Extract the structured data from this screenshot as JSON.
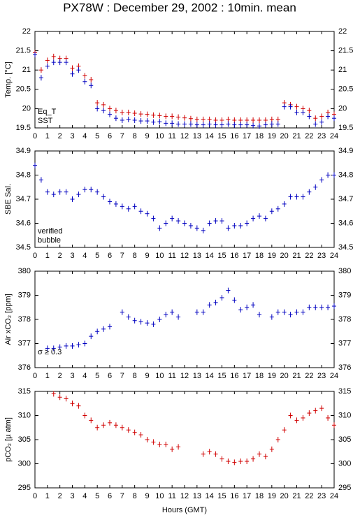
{
  "title": "PX78W : December 29, 2002 : 10min. mean",
  "xlabel": "Hours (GMT)",
  "chart_data": [
    {
      "type": "scatter",
      "ylabel": "Temp. [°C]",
      "legend": "lower left",
      "grid": false,
      "x": [
        0,
        0.5,
        1,
        1.5,
        2,
        2.5,
        3,
        3.5,
        4,
        4.5,
        5,
        5.5,
        6,
        6.5,
        7,
        7.5,
        8,
        8.5,
        9,
        9.5,
        10,
        10.5,
        11,
        11.5,
        12,
        12.5,
        13,
        13.5,
        14,
        14.5,
        15,
        15.5,
        16,
        16.5,
        17,
        17.5,
        18,
        18.5,
        19,
        19.5,
        20,
        20.5,
        21,
        21.5,
        22,
        22.5,
        23,
        23.5,
        24
      ],
      "xlim": [
        0,
        24
      ],
      "xticks": [
        0,
        1,
        2,
        3,
        4,
        5,
        6,
        7,
        8,
        9,
        10,
        11,
        12,
        13,
        14,
        15,
        16,
        17,
        18,
        19,
        20,
        21,
        22,
        23,
        24
      ],
      "ylim": [
        19.5,
        22
      ],
      "yticks": [
        19.5,
        20,
        20.5,
        21,
        21.5,
        22
      ],
      "series": [
        {
          "name": "Eq_T",
          "color": "#d00000",
          "values": [
            21.45,
            21.0,
            21.25,
            21.35,
            21.3,
            21.3,
            21.05,
            21.1,
            20.85,
            20.75,
            20.15,
            20.1,
            20.0,
            19.95,
            19.9,
            19.9,
            19.88,
            19.86,
            19.85,
            19.83,
            19.82,
            19.8,
            19.8,
            19.78,
            19.76,
            19.74,
            19.72,
            19.72,
            19.72,
            19.7,
            19.7,
            19.72,
            19.7,
            19.7,
            19.7,
            19.7,
            19.7,
            19.7,
            19.72,
            19.72,
            20.15,
            20.1,
            20.05,
            20.0,
            19.95,
            19.75,
            19.8,
            19.9,
            19.85
          ]
        },
        {
          "name": "SST",
          "color": "#0000c0",
          "values": [
            21.4,
            20.8,
            21.1,
            21.2,
            21.2,
            21.2,
            20.9,
            21.0,
            20.7,
            20.6,
            20.0,
            19.95,
            19.85,
            19.75,
            19.7,
            19.72,
            19.7,
            19.68,
            19.68,
            19.65,
            19.66,
            19.62,
            19.62,
            19.6,
            19.6,
            19.6,
            19.58,
            19.58,
            19.6,
            19.58,
            19.58,
            19.6,
            19.58,
            19.58,
            19.58,
            19.56,
            19.55,
            19.58,
            19.6,
            19.6,
            20.05,
            20.05,
            19.9,
            19.9,
            19.8,
            19.6,
            19.65,
            19.8,
            19.75
          ]
        }
      ]
    },
    {
      "type": "scatter",
      "ylabel": "SBE Sal.",
      "legend": "lower left",
      "grid": false,
      "x": [
        0,
        0.5,
        1,
        1.5,
        2,
        2.5,
        3,
        3.5,
        4,
        4.5,
        5,
        5.5,
        6,
        6.5,
        7,
        7.5,
        8,
        8.5,
        9,
        9.5,
        10,
        10.5,
        11,
        11.5,
        12,
        12.5,
        13,
        13.5,
        14,
        14.5,
        15,
        15.5,
        16,
        16.5,
        17,
        17.5,
        18,
        18.5,
        19,
        19.5,
        20,
        20.5,
        21,
        21.5,
        22,
        22.5,
        23,
        23.5,
        24
      ],
      "xlim": [
        0,
        24
      ],
      "xticks": [
        0,
        1,
        2,
        3,
        4,
        5,
        6,
        7,
        8,
        9,
        10,
        11,
        12,
        13,
        14,
        15,
        16,
        17,
        18,
        19,
        20,
        21,
        22,
        23,
        24
      ],
      "ylim": [
        34.5,
        34.9
      ],
      "yticks": [
        34.5,
        34.6,
        34.7,
        34.8,
        34.9
      ],
      "series": [
        {
          "name": "verified",
          "color": "#0000c0",
          "values": [
            34.84,
            34.78,
            34.73,
            34.72,
            34.73,
            34.73,
            34.7,
            34.72,
            34.74,
            34.74,
            34.73,
            34.71,
            34.69,
            34.68,
            34.67,
            34.66,
            34.67,
            34.65,
            34.64,
            34.62,
            34.58,
            34.6,
            34.62,
            34.61,
            34.6,
            34.59,
            34.58,
            34.57,
            34.6,
            34.61,
            34.61,
            34.58,
            34.59,
            34.59,
            34.6,
            34.62,
            34.63,
            34.62,
            34.65,
            34.66,
            34.68,
            34.71,
            34.71,
            34.71,
            34.73,
            34.75,
            34.78,
            34.8,
            34.8
          ]
        },
        {
          "name": "bubble",
          "color": "#c000c0",
          "values": [
            null,
            null,
            null,
            null,
            null,
            null,
            null,
            null,
            null,
            null,
            null,
            null,
            null,
            null,
            null,
            null,
            null,
            null,
            null,
            null,
            null,
            null,
            null,
            null,
            null,
            null,
            null,
            null,
            null,
            null,
            null,
            null,
            null,
            null,
            null,
            null,
            null,
            null,
            null,
            null,
            null,
            null,
            null,
            null,
            null,
            null,
            null,
            null,
            null
          ]
        }
      ]
    },
    {
      "type": "scatter",
      "ylabel": "Air xCO₂ [ppm]",
      "annotation": "σ ≥ 0.3",
      "annotation_color": "#c000c0",
      "grid": false,
      "x": [
        0,
        0.5,
        1,
        1.5,
        2,
        2.5,
        3,
        3.5,
        4,
        4.5,
        5,
        5.5,
        6,
        6.5,
        7,
        7.5,
        8,
        8.5,
        9,
        9.5,
        10,
        10.5,
        11,
        11.5,
        12,
        12.5,
        13,
        13.5,
        14,
        14.5,
        15,
        15.5,
        16,
        16.5,
        17,
        17.5,
        18,
        18.5,
        19,
        19.5,
        20,
        20.5,
        21,
        21.5,
        22,
        22.5,
        23,
        23.5,
        24
      ],
      "xlim": [
        0,
        24
      ],
      "xticks": [
        0,
        1,
        2,
        3,
        4,
        5,
        6,
        7,
        8,
        9,
        10,
        11,
        12,
        13,
        14,
        15,
        16,
        17,
        18,
        19,
        20,
        21,
        22,
        23,
        24
      ],
      "ylim": [
        376,
        380
      ],
      "yticks": [
        376,
        377,
        378,
        379,
        380
      ],
      "series": [
        {
          "color": "#0000c0",
          "values": [
            null,
            null,
            376.8,
            376.8,
            376.85,
            376.9,
            376.9,
            376.95,
            377.0,
            377.3,
            377.5,
            377.6,
            377.7,
            null,
            378.3,
            378.1,
            377.95,
            377.9,
            377.85,
            377.8,
            378.0,
            378.2,
            378.3,
            378.1,
            null,
            null,
            378.3,
            378.3,
            378.6,
            378.7,
            378.9,
            379.2,
            378.8,
            378.4,
            378.5,
            378.6,
            378.2,
            null,
            378.1,
            378.3,
            378.3,
            378.2,
            378.3,
            378.3,
            378.5,
            378.5,
            378.5,
            378.5,
            378.55
          ]
        }
      ]
    },
    {
      "type": "scatter",
      "ylabel": "pCO₂ [µ atm]",
      "grid": false,
      "x": [
        0,
        0.5,
        1,
        1.5,
        2,
        2.5,
        3,
        3.5,
        4,
        4.5,
        5,
        5.5,
        6,
        6.5,
        7,
        7.5,
        8,
        8.5,
        9,
        9.5,
        10,
        10.5,
        11,
        11.5,
        12,
        12.5,
        13,
        13.5,
        14,
        14.5,
        15,
        15.5,
        16,
        16.5,
        17,
        17.5,
        18,
        18.5,
        19,
        19.5,
        20,
        20.5,
        21,
        21.5,
        22,
        22.5,
        23,
        23.5,
        24
      ],
      "xlim": [
        0,
        24
      ],
      "xticks": [
        0,
        1,
        2,
        3,
        4,
        5,
        6,
        7,
        8,
        9,
        10,
        11,
        12,
        13,
        14,
        15,
        16,
        17,
        18,
        19,
        20,
        21,
        22,
        23,
        24
      ],
      "ylim": [
        295,
        315
      ],
      "yticks": [
        295,
        300,
        305,
        310,
        315
      ],
      "series": [
        {
          "color": "#d00000",
          "values": [
            null,
            null,
            null,
            314.5,
            313.8,
            313.5,
            312.5,
            312,
            310,
            309,
            307.5,
            308,
            308.5,
            308,
            307.5,
            307,
            306.5,
            306,
            305,
            304.5,
            304,
            304,
            303,
            303.5,
            null,
            null,
            null,
            302,
            302.5,
            302,
            301,
            300.5,
            300.3,
            300.5,
            300.5,
            301,
            302,
            301.5,
            303,
            305,
            307,
            310,
            309,
            309.5,
            310.5,
            311,
            311.5,
            309.5,
            308
          ]
        }
      ]
    }
  ]
}
